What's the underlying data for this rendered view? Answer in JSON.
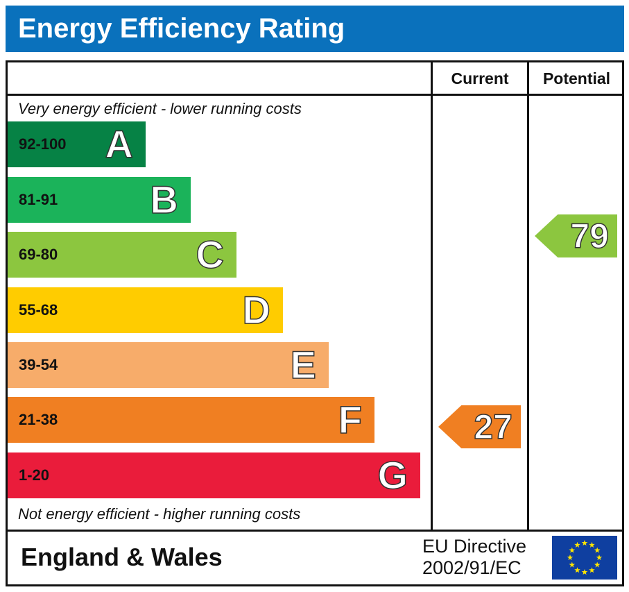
{
  "title": "Energy Efficiency Rating",
  "chart_data": {
    "type": "bar",
    "headers": {
      "current": "Current",
      "potential": "Potential"
    },
    "top_note": "Very energy efficient - lower running costs",
    "bottom_note": "Not energy efficient - higher running costs",
    "bands": [
      {
        "letter": "A",
        "range": "92-100",
        "color": "#068245",
        "text_color": "#111"
      },
      {
        "letter": "B",
        "range": "81-91",
        "color": "#1bb35a",
        "text_color": "#111"
      },
      {
        "letter": "C",
        "range": "69-80",
        "color": "#8cc63f",
        "text_color": "#111"
      },
      {
        "letter": "D",
        "range": "55-68",
        "color": "#ffcc00",
        "text_color": "#111"
      },
      {
        "letter": "E",
        "range": "39-54",
        "color": "#f7ac6a",
        "text_color": "#111"
      },
      {
        "letter": "F",
        "range": "21-38",
        "color": "#f07f22",
        "text_color": "#111"
      },
      {
        "letter": "G",
        "range": "1-20",
        "color": "#ea1c3b",
        "text_color": "#111"
      }
    ],
    "current": {
      "value": "27",
      "band": "F",
      "color": "#f07f22"
    },
    "potential": {
      "value": "79",
      "band": "C",
      "color": "#8cc63f"
    }
  },
  "footer": {
    "region": "England & Wales",
    "directive_line1": "EU Directive",
    "directive_line2": "2002/91/EC",
    "flag_color": "#0f3fa0",
    "star_color": "#ffe500"
  }
}
